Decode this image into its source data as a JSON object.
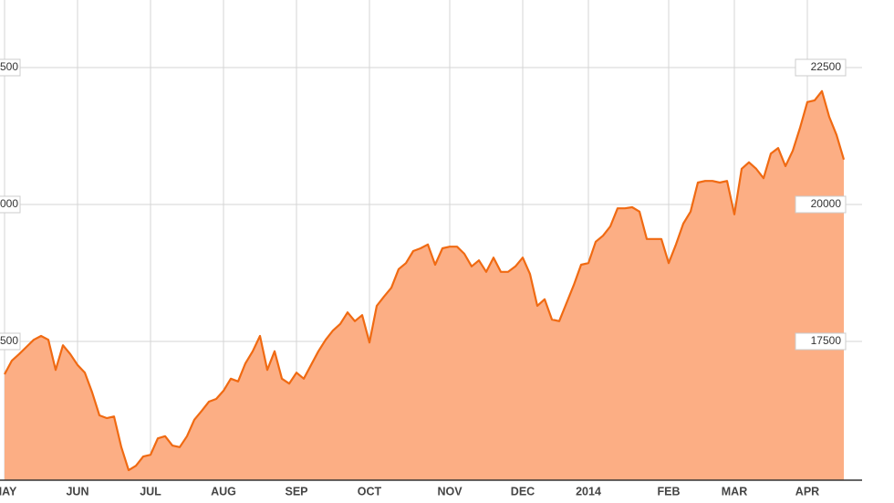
{
  "chart_data": {
    "type": "area",
    "categories": [
      "MAY",
      null,
      null,
      null,
      null,
      null,
      null,
      null,
      null,
      null,
      "JUN",
      null,
      null,
      null,
      null,
      null,
      null,
      null,
      null,
      null,
      "JUL",
      null,
      null,
      null,
      null,
      null,
      null,
      null,
      null,
      null,
      "AUG",
      null,
      null,
      null,
      null,
      null,
      null,
      null,
      null,
      null,
      "SEP",
      null,
      null,
      null,
      null,
      null,
      null,
      null,
      null,
      null,
      "OCT",
      null,
      null,
      null,
      null,
      null,
      null,
      null,
      null,
      null,
      null,
      "NOV",
      null,
      null,
      null,
      null,
      null,
      null,
      null,
      null,
      null,
      "DEC",
      null,
      null,
      null,
      null,
      null,
      null,
      null,
      null,
      "2014",
      null,
      null,
      null,
      null,
      null,
      null,
      null,
      null,
      null,
      null,
      "FEB",
      null,
      null,
      null,
      null,
      null,
      null,
      null,
      null,
      "MAR",
      null,
      null,
      null,
      null,
      null,
      null,
      null,
      null,
      null,
      "APR",
      null,
      null,
      null,
      null,
      null
    ],
    "values": [
      16900,
      17150,
      17270,
      17400,
      17530,
      17600,
      17530,
      16980,
      17430,
      17270,
      17070,
      16930,
      16570,
      16150,
      16100,
      16130,
      15570,
      15150,
      15230,
      15400,
      15430,
      15730,
      15770,
      15600,
      15570,
      15770,
      16070,
      16230,
      16400,
      16450,
      16600,
      16820,
      16770,
      17100,
      17320,
      17600,
      16980,
      17320,
      16820,
      16730,
      16930,
      16820,
      17070,
      17320,
      17530,
      17700,
      17820,
      18030,
      17870,
      17980,
      17480,
      18150,
      18320,
      18480,
      18820,
      18930,
      19150,
      19200,
      19270,
      18900,
      19200,
      19230,
      19230,
      19100,
      18870,
      18980,
      18770,
      19030,
      18770,
      18770,
      18870,
      19030,
      18730,
      18150,
      18270,
      17900,
      17870,
      18200,
      18530,
      18900,
      18930,
      19320,
      19430,
      19600,
      19930,
      19930,
      19950,
      19870,
      19370,
      19370,
      19370,
      18930,
      19270,
      19650,
      19870,
      20400,
      20430,
      20430,
      20400,
      20430,
      19820,
      20650,
      20770,
      20650,
      20480,
      20930,
      21030,
      20700,
      20980,
      21400,
      21870,
      21900,
      22070,
      21600,
      21270,
      20820
    ],
    "color": "#f06a12",
    "fill_color": "#fcae84",
    "ylim": [
      14967,
      23733
    ],
    "yticks": [
      17500,
      20000,
      22500
    ],
    "grid": true
  }
}
